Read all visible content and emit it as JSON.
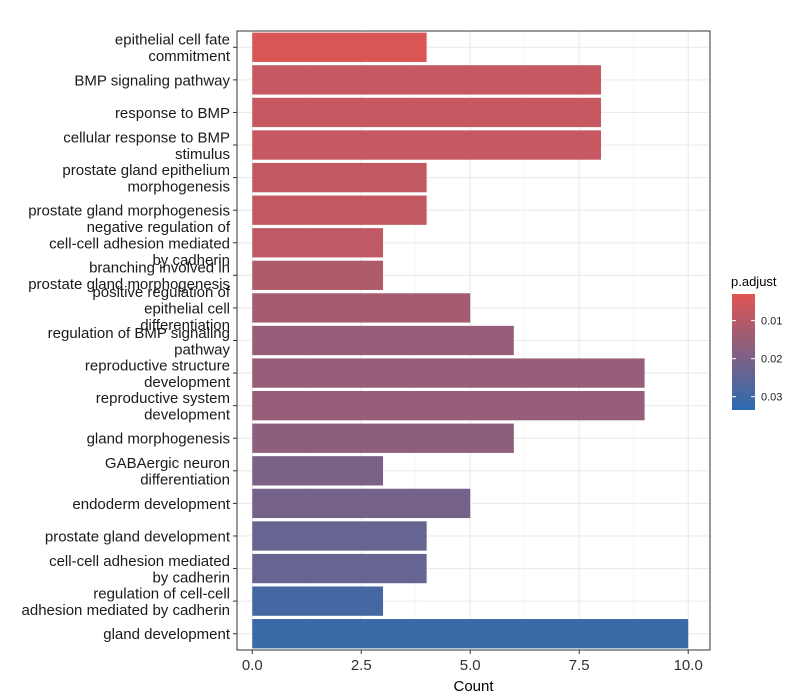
{
  "chart_data": {
    "type": "bar",
    "orientation": "horizontal",
    "title": "",
    "xlabel": "Count",
    "ylabel": "",
    "xlim": [
      -0.35,
      10.5
    ],
    "xticks": [
      0.0,
      2.5,
      5.0,
      7.5,
      10.0
    ],
    "xtick_labels": [
      "0.0",
      "2.5",
      "5.0",
      "7.5",
      "10.0"
    ],
    "grid": true,
    "categories": [
      "epithelial cell fate\ncommitment",
      "BMP signaling pathway",
      "response to BMP",
      "cellular response to BMP\nstimulus",
      "prostate gland epithelium\nmorphogenesis",
      "prostate gland morphogenesis",
      "negative regulation of\ncell-cell adhesion mediated\nby cadherin",
      "branching involved in\nprostate gland morphogenesis",
      "positive regulation of\nepithelial cell\ndifferentiation",
      "regulation of BMP signaling\npathway",
      "reproductive structure\ndevelopment",
      "reproductive system\ndevelopment",
      "gland morphogenesis",
      "GABAergic neuron\ndifferentiation",
      "endoderm development",
      "prostate gland development",
      "cell-cell adhesion mediated\nby cadherin",
      "regulation of cell-cell\nadhesion mediated by cadherin",
      "gland development"
    ],
    "values": [
      4,
      8,
      8,
      8,
      4,
      4,
      3,
      3,
      5,
      6,
      9,
      9,
      6,
      3,
      5,
      4,
      4,
      3,
      10
    ],
    "p_adjust": [
      0.004,
      0.0075,
      0.0075,
      0.0075,
      0.008,
      0.008,
      0.0085,
      0.0115,
      0.013,
      0.0155,
      0.0155,
      0.0155,
      0.017,
      0.02,
      0.021,
      0.0235,
      0.0235,
      0.029,
      0.031
    ],
    "legend": {
      "title": "p.adjust",
      "position": "right",
      "range": [
        0.003,
        0.0335
      ],
      "ticks": [
        0.01,
        0.02,
        0.03
      ],
      "tick_labels": [
        "0.01",
        "0.02",
        "0.03"
      ],
      "color_low": "#E05552",
      "color_high": "#2B6BB0"
    }
  }
}
